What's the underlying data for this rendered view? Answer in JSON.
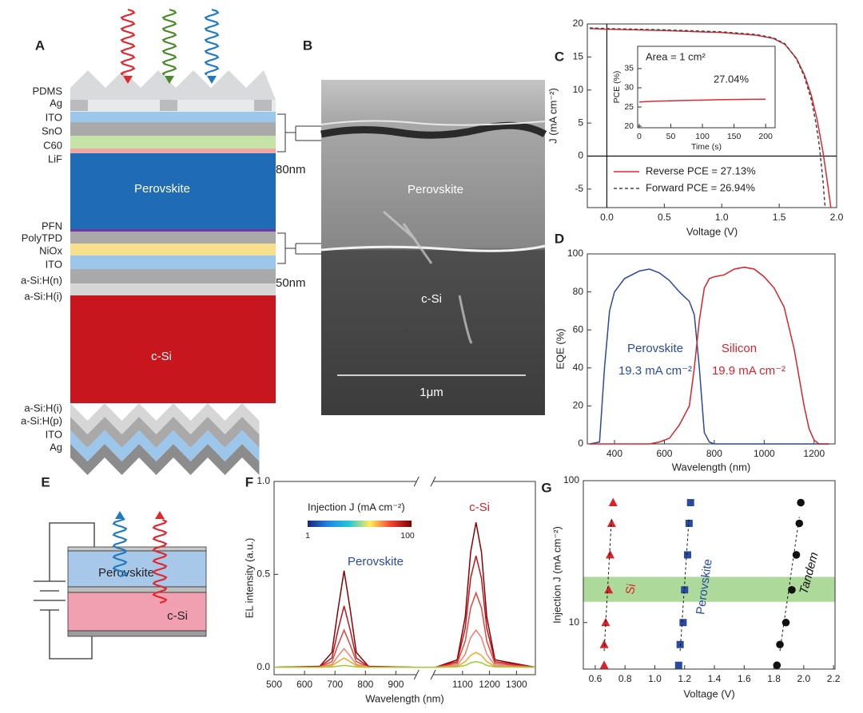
{
  "panel_labels": [
    "A",
    "B",
    "C",
    "D",
    "E",
    "F",
    "G"
  ],
  "stack": {
    "labels": [
      "PDMS",
      "Ag",
      "ITO",
      "SnO",
      "C60",
      "LiF",
      "PFN",
      "PolyTPD",
      "NiOx",
      "ITO",
      "a-Si:H(n)",
      "a-Si:H(i)",
      "a-Si:H(i)",
      "a-Si:H(p)",
      "ITO",
      "Ag"
    ],
    "perovskite": "Perovskite",
    "c_si": "c-Si"
  },
  "sem": {
    "top_thickness": "80nm",
    "bottom_thickness": "50nm",
    "perovskite": "Perovskite",
    "c_si": "c-Si",
    "scale_bar": "1μm"
  },
  "device": {
    "perovskite": "Perovskite",
    "c_si": "c-Si"
  },
  "chart_data": [
    {
      "type": "line",
      "xlabel": "Voltage (V)",
      "ylabel": "J (mA cm⁻²)",
      "xlim": [
        -0.17,
        2.0
      ],
      "xticks": [
        {
          "value": 0,
          "label": "0.0"
        },
        0.5,
        {
          "value": 1,
          "label": "1.0"
        },
        1.5,
        {
          "value": 2,
          "label": "2.0"
        }
      ],
      "ylim": [
        -7.8,
        20
      ],
      "yticks": [
        -5,
        0,
        5,
        10,
        15,
        20
      ],
      "zero_lines": true,
      "legend": "lower left",
      "series": [
        {
          "name": "Reverse PCE = 27.13%",
          "color": "#e0282e",
          "dashed": false,
          "x": [
            -0.15,
            0,
            0.5,
            1.0,
            1.3,
            1.45,
            1.55,
            1.65,
            1.72,
            1.78,
            1.83,
            1.88,
            1.92,
            1.95
          ],
          "values": [
            19.3,
            19.2,
            19.0,
            18.7,
            18.3,
            17.8,
            16.9,
            14.8,
            12.3,
            9.2,
            5.5,
            0.8,
            -4,
            -7.8
          ]
        },
        {
          "name": "Forward PCE = 26.94%",
          "color": "#444444",
          "dashed": true,
          "x": [
            -0.15,
            0,
            0.5,
            1.0,
            1.3,
            1.45,
            1.55,
            1.65,
            1.72,
            1.78,
            1.82,
            1.85,
            1.88,
            1.9
          ],
          "values": [
            19.4,
            19.3,
            19.1,
            18.8,
            18.4,
            17.9,
            17.0,
            14.7,
            12.0,
            8.5,
            5,
            1.5,
            -3.5,
            -7.8
          ]
        }
      ]
    },
    {
      "type": "line",
      "title": "Area = 1 cm²",
      "xlabel": "Time (s)",
      "ylabel": "PCE (%)",
      "annotation": "27.04%",
      "xlim": [
        -2.5,
        215
      ],
      "xticks": [
        0,
        50,
        100,
        150,
        200
      ],
      "ylim": [
        19.6,
        40.8
      ],
      "yticks": [
        20,
        25,
        30,
        35
      ],
      "x": [
        0,
        25,
        50,
        75,
        100,
        125,
        150,
        175,
        200
      ],
      "series": [
        {
          "color": "#e0282e",
          "values": [
            26.3,
            26.5,
            26.6,
            26.7,
            26.8,
            26.9,
            26.95,
            27.0,
            27.04
          ]
        }
      ]
    },
    {
      "type": "line",
      "xlabel": "Wavelength (nm)",
      "ylabel": "EQE (%)",
      "xlim": [
        291,
        1284
      ],
      "xticks": [
        400,
        600,
        800,
        1000,
        1200
      ],
      "ylim": [
        0,
        100
      ],
      "yticks": [
        0,
        20,
        40,
        60,
        80,
        100
      ],
      "x": [
        300,
        340,
        360,
        380,
        400,
        440,
        500,
        540,
        580,
        620,
        660,
        700,
        720,
        740,
        760,
        780,
        800,
        840,
        880,
        920,
        960,
        1000,
        1040,
        1080,
        1120,
        1160,
        1180,
        1200,
        1220,
        1260
      ],
      "series": [
        {
          "name": "Perovskite",
          "current": "19.3 mA cm⁻²",
          "color": "#2a4aa0",
          "values": [
            0,
            1,
            40,
            70,
            80,
            87,
            91,
            92,
            90,
            86,
            80,
            75,
            68,
            40,
            6,
            1,
            0,
            0,
            0,
            0,
            0,
            0,
            0,
            0,
            0,
            0,
            0,
            0,
            0,
            0
          ]
        },
        {
          "name": "Silicon",
          "current": "19.9 mA cm⁻²",
          "color": "#d9232b",
          "values": [
            0,
            0,
            0,
            0,
            0,
            0,
            0,
            0,
            1,
            3,
            10,
            20,
            40,
            65,
            82,
            87,
            88,
            89,
            92,
            93,
            92,
            88,
            82,
            72,
            50,
            20,
            8,
            2,
            0,
            0
          ]
        }
      ]
    },
    {
      "type": "line",
      "xlabel": "Wavelength (nm)",
      "ylabel": "EL intensity (a.u.)",
      "xlim": [
        500,
        1370
      ],
      "axis_break": [
        960,
        1000
      ],
      "xticks": [
        500,
        600,
        700,
        800,
        900,
        1100,
        1200,
        1300
      ],
      "ylim": [
        -0.04,
        1.0
      ],
      "yticks": [
        {
          "value": 0,
          "label": "0.0"
        },
        {
          "value": 0.5,
          "label": "0.5"
        },
        {
          "value": 1.0,
          "label": "1.0"
        }
      ],
      "annotations": [
        {
          "text": "Perovskite",
          "color": "#2a4aa0"
        },
        {
          "text": "c-Si",
          "color": "#d9232b"
        }
      ],
      "colorbar": {
        "title": "Injection J (mA cm⁻²)",
        "ticks": [
          1,
          100
        ],
        "colors": [
          "#1a237e",
          "#1e88e5",
          "#26c6da",
          "#ffee58",
          "#f44336",
          "#7f0000"
        ]
      },
      "x": [
        500,
        650,
        690,
        710,
        730,
        750,
        770,
        810,
        960,
        1000,
        1080,
        1110,
        1130,
        1150,
        1170,
        1190,
        1220,
        1370
      ],
      "series": [
        {
          "color": "#8b0000",
          "values": [
            0,
            0.005,
            0.08,
            0.31,
            0.52,
            0.31,
            0.08,
            0.005,
            0,
            0,
            0.04,
            0.27,
            0.62,
            0.78,
            0.62,
            0.27,
            0.04,
            0
          ]
        },
        {
          "color": "#c0141e",
          "values": [
            0,
            0.003,
            0.05,
            0.2,
            0.33,
            0.2,
            0.05,
            0.003,
            0,
            0,
            0.03,
            0.21,
            0.48,
            0.6,
            0.48,
            0.21,
            0.03,
            0
          ]
        },
        {
          "color": "#e0483c",
          "values": [
            0,
            0.002,
            0.03,
            0.12,
            0.2,
            0.12,
            0.03,
            0.002,
            0,
            0,
            0.02,
            0.14,
            0.32,
            0.4,
            0.32,
            0.14,
            0.02,
            0
          ]
        },
        {
          "color": "#f08070",
          "values": [
            0,
            0.001,
            0.015,
            0.06,
            0.1,
            0.06,
            0.015,
            0.001,
            0,
            0,
            0.01,
            0.07,
            0.16,
            0.2,
            0.16,
            0.07,
            0.01,
            0
          ]
        },
        {
          "color": "#f5a623",
          "values": [
            0,
            0,
            0.008,
            0.03,
            0.05,
            0.03,
            0.008,
            0,
            0,
            0,
            0.004,
            0.03,
            0.064,
            0.08,
            0.064,
            0.03,
            0.004,
            0
          ]
        },
        {
          "color": "#9acd32",
          "values": [
            0,
            0,
            0.002,
            0.006,
            0.01,
            0.006,
            0.002,
            0,
            0,
            0,
            0.002,
            0.01,
            0.024,
            0.03,
            0.024,
            0.01,
            0.002,
            0
          ]
        }
      ]
    },
    {
      "type": "scatter",
      "xlabel": "Voltage (V)",
      "ylabel": "Injection J (mA cm⁻²)",
      "log_y": true,
      "xlim": [
        0.52,
        2.21
      ],
      "xticks": [
        0.6,
        0.8,
        {
          "value": 1.0,
          "label": "1.0"
        },
        1.2,
        1.4,
        1.6,
        1.8,
        {
          "value": 2.0,
          "label": "2.0"
        },
        2.2
      ],
      "ylim": [
        4.7,
        100
      ],
      "yticks": [
        10,
        100
      ],
      "band": [
        14,
        21
      ],
      "band_color": "#9fd38a",
      "series": [
        {
          "name": "Si",
          "color": "#d9232b",
          "marker": "triangle",
          "x": [
            0.66,
            0.66,
            0.67,
            0.69,
            0.7,
            0.71,
            0.72
          ],
          "values": [
            5,
            7,
            10,
            17,
            30,
            50,
            70
          ]
        },
        {
          "name": "Perovskite",
          "color": "#2a4aa0",
          "marker": "square",
          "x": [
            1.16,
            1.17,
            1.19,
            1.2,
            1.22,
            1.23,
            1.24
          ],
          "values": [
            5,
            7,
            10,
            17,
            30,
            50,
            70
          ]
        },
        {
          "name": "Tandem",
          "color": "#111111",
          "marker": "circle",
          "x": [
            1.82,
            1.84,
            1.88,
            1.92,
            1.95,
            1.97,
            1.98
          ],
          "values": [
            5,
            7,
            10,
            17,
            30,
            50,
            70
          ]
        }
      ]
    }
  ]
}
